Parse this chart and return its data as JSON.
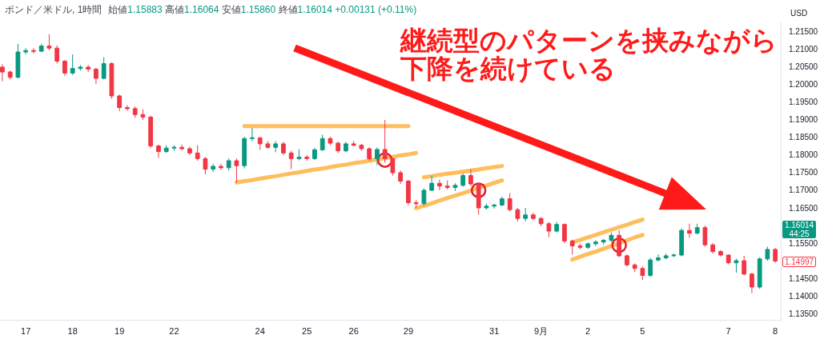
{
  "chart_data": {
    "type": "candlestick",
    "title": "ポンド／米ドル, 1時間",
    "subtitle": "始値1.15883 高値1.16064 安値1.15860 終値1.16014 +0.00131 (+0.11%)",
    "ylabel": "USD",
    "annotations": [
      "継続型のパターンを挟みながら",
      "下降を続けている",
      "1.16014",
      "44:25",
      "1.14997"
    ],
    "categories": [
      null,
      null,
      null,
      "17",
      null,
      null,
      null,
      null,
      null,
      "18",
      null,
      null,
      null,
      null,
      null,
      "19",
      null,
      null,
      null,
      null,
      null,
      null,
      "22",
      null,
      null,
      null,
      null,
      null,
      null,
      null,
      null,
      null,
      null,
      "24",
      null,
      null,
      null,
      null,
      null,
      "25",
      null,
      null,
      null,
      null,
      null,
      "26",
      null,
      null,
      null,
      null,
      null,
      null,
      "29",
      null,
      null,
      null,
      null,
      null,
      null,
      null,
      null,
      null,
      null,
      "31",
      null,
      null,
      null,
      null,
      null,
      "9月",
      null,
      null,
      null,
      null,
      null,
      "2",
      null,
      null,
      null,
      null,
      null,
      null,
      "5",
      null,
      null,
      null,
      null,
      null,
      null,
      null,
      null,
      null,
      null,
      "7",
      null,
      null,
      null,
      null,
      null,
      "8"
    ],
    "ohlc": [
      [
        1.205,
        1.2058,
        1.201,
        1.2036
      ],
      [
        1.2036,
        1.204,
        1.2015,
        1.2021
      ],
      [
        1.2021,
        1.2116,
        1.2018,
        1.2093
      ],
      [
        1.2093,
        1.2104,
        1.2086,
        1.2097
      ],
      [
        1.2097,
        1.2104,
        1.2088,
        1.2095
      ],
      [
        1.2095,
        1.2116,
        1.2093,
        1.211
      ],
      [
        1.211,
        1.2143,
        1.2098,
        1.2104
      ],
      [
        1.2104,
        1.2112,
        1.206,
        1.2067
      ],
      [
        1.2067,
        1.207,
        1.2025,
        1.2033
      ],
      [
        1.2033,
        1.2086,
        1.2028,
        1.2046
      ],
      [
        1.2046,
        1.2056,
        1.204,
        1.205
      ],
      [
        1.205,
        1.2056,
        1.2036,
        1.2044
      ],
      [
        1.2044,
        1.2048,
        1.2002,
        1.2018
      ],
      [
        1.2018,
        1.2078,
        1.2015,
        1.206
      ],
      [
        1.206,
        1.2064,
        1.196,
        1.1968
      ],
      [
        1.1968,
        1.1972,
        1.1925,
        1.1935
      ],
      [
        1.1935,
        1.1942,
        1.1926,
        1.1932
      ],
      [
        1.1932,
        1.1938,
        1.1906,
        1.1915
      ],
      [
        1.1915,
        1.193,
        1.19,
        1.1908
      ],
      [
        1.1908,
        1.1912,
        1.182,
        1.1826
      ],
      [
        1.1826,
        1.183,
        1.1792,
        1.181
      ],
      [
        1.181,
        1.1828,
        1.1806,
        1.182
      ],
      [
        1.182,
        1.1828,
        1.1812,
        1.1822
      ],
      [
        1.1822,
        1.183,
        1.1814,
        1.1818
      ],
      [
        1.1818,
        1.1824,
        1.18,
        1.1806
      ],
      [
        1.1806,
        1.1828,
        1.1784,
        1.179
      ],
      [
        1.179,
        1.1795,
        1.1745,
        1.176
      ],
      [
        1.176,
        1.1775,
        1.1752,
        1.1768
      ],
      [
        1.1768,
        1.1775,
        1.1758,
        1.1764
      ],
      [
        1.1764,
        1.179,
        1.1756,
        1.1784
      ],
      [
        1.1784,
        1.179,
        1.1722,
        1.177
      ],
      [
        1.177,
        1.1852,
        1.1762,
        1.1847
      ],
      [
        1.1847,
        1.1877,
        1.184,
        1.1849
      ],
      [
        1.1849,
        1.1852,
        1.1815,
        1.1832
      ],
      [
        1.1832,
        1.184,
        1.1818,
        1.1822
      ],
      [
        1.1822,
        1.184,
        1.1808,
        1.1832
      ],
      [
        1.1832,
        1.1838,
        1.18,
        1.1806
      ],
      [
        1.1806,
        1.1812,
        1.176,
        1.179
      ],
      [
        1.179,
        1.1817,
        1.1785,
        1.1794
      ],
      [
        1.1794,
        1.18,
        1.1784,
        1.179
      ],
      [
        1.179,
        1.182,
        1.1786,
        1.1815
      ],
      [
        1.1815,
        1.1858,
        1.1812,
        1.1847
      ],
      [
        1.1847,
        1.1852,
        1.1828,
        1.1834
      ],
      [
        1.1834,
        1.1838,
        1.1806,
        1.1812
      ],
      [
        1.1812,
        1.1838,
        1.1808,
        1.1832
      ],
      [
        1.1832,
        1.184,
        1.1824,
        1.1828
      ],
      [
        1.1828,
        1.1832,
        1.1812,
        1.1818
      ],
      [
        1.1818,
        1.1822,
        1.1784,
        1.179
      ],
      [
        1.179,
        1.1822,
        1.1771,
        1.1816
      ],
      [
        1.1816,
        1.19,
        1.1778,
        1.179
      ],
      [
        1.179,
        1.1792,
        1.1742,
        1.175
      ],
      [
        1.175,
        1.1756,
        1.1718,
        1.1726
      ],
      [
        1.1726,
        1.173,
        1.1658,
        1.1665
      ],
      [
        1.1665,
        1.1672,
        1.165,
        1.1662
      ],
      [
        1.1662,
        1.1705,
        1.1656,
        1.17
      ],
      [
        1.17,
        1.1742,
        1.1698,
        1.172
      ],
      [
        1.172,
        1.173,
        1.17,
        1.1712
      ],
      [
        1.1712,
        1.1728,
        1.1702,
        1.1708
      ],
      [
        1.1708,
        1.172,
        1.1698,
        1.1714
      ],
      [
        1.1714,
        1.1748,
        1.171,
        1.1742
      ],
      [
        1.1742,
        1.176,
        1.1712,
        1.1718
      ],
      [
        1.1718,
        1.1722,
        1.1631,
        1.165
      ],
      [
        1.165,
        1.1662,
        1.1645,
        1.1655
      ],
      [
        1.1655,
        1.1662,
        1.1648,
        1.1658
      ],
      [
        1.1658,
        1.1682,
        1.1655,
        1.1676
      ],
      [
        1.1676,
        1.1692,
        1.164,
        1.1645
      ],
      [
        1.1645,
        1.165,
        1.1612,
        1.162
      ],
      [
        1.162,
        1.165,
        1.1612,
        1.163
      ],
      [
        1.163,
        1.1636,
        1.1615,
        1.162
      ],
      [
        1.162,
        1.1624,
        1.1598,
        1.1605
      ],
      [
        1.1605,
        1.161,
        1.1567,
        1.1584
      ],
      [
        1.1584,
        1.161,
        1.158,
        1.1603
      ],
      [
        1.1603,
        1.1606,
        1.155,
        1.1556
      ],
      [
        1.1556,
        1.156,
        1.1517,
        1.1542
      ],
      [
        1.1542,
        1.1548,
        1.1532,
        1.1538
      ],
      [
        1.1538,
        1.1552,
        1.1533,
        1.1548
      ],
      [
        1.1548,
        1.1558,
        1.1542,
        1.1553
      ],
      [
        1.1553,
        1.1562,
        1.1546,
        1.1558
      ],
      [
        1.1558,
        1.158,
        1.1552,
        1.1572
      ],
      [
        1.1572,
        1.1586,
        1.151,
        1.1514
      ],
      [
        1.1514,
        1.1518,
        1.1484,
        1.1488
      ],
      [
        1.1488,
        1.1492,
        1.1468,
        1.1478
      ],
      [
        1.1478,
        1.1484,
        1.1445,
        1.1458
      ],
      [
        1.1458,
        1.1508,
        1.1454,
        1.1502
      ],
      [
        1.1502,
        1.1518,
        1.1498,
        1.1508
      ],
      [
        1.1508,
        1.152,
        1.1504,
        1.1514
      ],
      [
        1.1514,
        1.152,
        1.151,
        1.1516
      ],
      [
        1.1516,
        1.1592,
        1.1512,
        1.1586
      ],
      [
        1.1586,
        1.1605,
        1.1565,
        1.1578
      ],
      [
        1.1578,
        1.1605,
        1.1575,
        1.1594
      ],
      [
        1.1594,
        1.16,
        1.154,
        1.1545
      ],
      [
        1.1545,
        1.155,
        1.152,
        1.1526
      ],
      [
        1.1526,
        1.153,
        1.1512,
        1.1516
      ],
      [
        1.1516,
        1.1518,
        1.149,
        1.1494
      ],
      [
        1.1494,
        1.1506,
        1.1466,
        1.15
      ],
      [
        1.15,
        1.1514,
        1.1458,
        1.1462
      ],
      [
        1.1462,
        1.1466,
        1.1408,
        1.1425
      ],
      [
        1.1425,
        1.151,
        1.142,
        1.1505
      ],
      [
        1.1505,
        1.154,
        1.15,
        1.1532
      ],
      [
        1.1532,
        1.1536,
        1.1494,
        1.1499
      ]
    ],
    "colors": [
      "#f23645",
      "#f23645",
      "#089981",
      "#089981",
      "#f23645",
      "#089981",
      "#f23645",
      "#f23645",
      "#f23645",
      "#089981",
      "#089981",
      "#f23645",
      "#f23645",
      "#089981",
      "#f23645",
      "#f23645",
      "#f23645",
      "#f23645",
      "#f23645",
      "#f23645",
      "#f23645",
      "#089981",
      "#089981",
      "#f23645",
      "#f23645",
      "#f23645",
      "#f23645",
      "#089981",
      "#f23645",
      "#089981",
      "#f23645",
      "#089981",
      "#089981",
      "#f23645",
      "#f23645",
      "#089981",
      "#f23645",
      "#f23645",
      "#089981",
      "#f23645",
      "#089981",
      "#089981",
      "#f23645",
      "#f23645",
      "#089981",
      "#f23645",
      "#f23645",
      "#f23645",
      "#089981",
      "#f23645",
      "#f23645",
      "#f23645",
      "#f23645",
      "#f23645",
      "#089981",
      "#089981",
      "#f23645",
      "#f23645",
      "#089981",
      "#089981",
      "#f23645",
      "#f23645",
      "#089981",
      "#089981",
      "#089981",
      "#f23645",
      "#f23645",
      "#089981",
      "#f23645",
      "#f23645",
      "#f23645",
      "#089981",
      "#f23645",
      "#f23645",
      "#f23645",
      "#089981",
      "#089981",
      "#089981",
      "#089981",
      "#f23645",
      "#f23645",
      "#f23645",
      "#f23645",
      "#089981",
      "#089981",
      "#089981",
      "#089981",
      "#089981",
      "#f23645",
      "#089981",
      "#f23645",
      "#f23645",
      "#f23645",
      "#f23645",
      "#089981",
      "#f23645",
      "#f23645",
      "#089981",
      "#089981",
      "#f23645"
    ],
    "series": [
      {
        "type": "line",
        "color": "#ffb74d",
        "values": [
          null,
          null,
          null,
          null,
          null,
          null,
          null,
          null,
          null,
          null,
          null,
          null,
          null,
          null,
          null,
          null,
          null,
          null,
          null,
          null,
          null,
          null,
          null,
          null,
          null,
          null,
          null,
          null,
          null,
          null,
          null,
          1.1882,
          1.1882,
          1.1882,
          1.1882,
          1.1882,
          1.1882,
          1.1882,
          1.1882,
          1.1882,
          1.1882,
          1.1882,
          1.1882,
          1.1882,
          1.1882,
          1.1882,
          1.1882,
          1.1882,
          1.1882,
          1.1882,
          1.1882,
          1.1882,
          1.1882,
          null,
          null,
          null,
          null,
          null,
          null,
          null,
          null,
          null,
          null,
          null,
          null,
          null,
          null,
          null,
          null,
          null,
          null,
          null,
          null,
          null,
          null,
          null,
          null,
          null,
          null,
          null,
          null,
          null,
          null,
          null,
          null,
          null,
          null,
          null,
          null,
          null,
          null,
          null,
          null,
          null,
          null,
          null,
          null,
          null,
          null,
          null
        ]
      },
      {
        "type": "line",
        "color": "#ffb74d",
        "values": [
          null,
          null,
          null,
          null,
          null,
          null,
          null,
          null,
          null,
          null,
          null,
          null,
          null,
          null,
          null,
          null,
          null,
          null,
          null,
          null,
          null,
          null,
          null,
          null,
          null,
          null,
          null,
          null,
          null,
          null,
          1.1722,
          1.1726,
          1.1729,
          1.1733,
          1.1737,
          1.174,
          1.1744,
          1.1748,
          1.1751,
          1.1755,
          1.1759,
          1.1762,
          1.1766,
          1.177,
          1.1773,
          1.1777,
          1.178,
          1.1784,
          1.1788,
          1.1791,
          1.1795,
          1.1799,
          1.1802,
          1.1806,
          null,
          null,
          null,
          null,
          null,
          null,
          null,
          null,
          null,
          null,
          null,
          null,
          null,
          null,
          null,
          null,
          null,
          null,
          null,
          null,
          null,
          null,
          null,
          null,
          null,
          null,
          null,
          null,
          null,
          null,
          null,
          null,
          null,
          null,
          null,
          null,
          null,
          null,
          null,
          null,
          null,
          null,
          null,
          null,
          null,
          null
        ]
      },
      {
        "type": "line",
        "color": "#ffb74d",
        "values": [
          null,
          null,
          null,
          null,
          null,
          null,
          null,
          null,
          null,
          null,
          null,
          null,
          null,
          null,
          null,
          null,
          null,
          null,
          null,
          null,
          null,
          null,
          null,
          null,
          null,
          null,
          null,
          null,
          null,
          null,
          null,
          null,
          null,
          null,
          null,
          null,
          null,
          null,
          null,
          null,
          null,
          null,
          null,
          null,
          null,
          null,
          null,
          null,
          null,
          null,
          null,
          null,
          null,
          null,
          1.1737,
          1.174,
          1.1744,
          1.1747,
          1.175,
          1.1753,
          1.1756,
          1.1759,
          1.1763,
          1.1766,
          1.1769,
          null,
          null,
          null,
          null,
          null,
          null,
          null,
          null,
          null,
          null,
          null,
          null,
          null,
          null,
          null,
          null,
          null,
          null,
          null,
          null,
          null,
          null,
          null,
          null,
          null,
          null,
          null,
          null,
          null,
          null,
          null,
          null,
          null,
          null,
          null
        ]
      },
      {
        "type": "line",
        "color": "#ffb74d",
        "values": [
          null,
          null,
          null,
          null,
          null,
          null,
          null,
          null,
          null,
          null,
          null,
          null,
          null,
          null,
          null,
          null,
          null,
          null,
          null,
          null,
          null,
          null,
          null,
          null,
          null,
          null,
          null,
          null,
          null,
          null,
          null,
          null,
          null,
          null,
          null,
          null,
          null,
          null,
          null,
          null,
          null,
          null,
          null,
          null,
          null,
          null,
          null,
          null,
          null,
          null,
          null,
          null,
          null,
          1.1649,
          1.1656,
          1.1663,
          1.1671,
          1.1678,
          1.1685,
          1.1692,
          1.1699,
          1.1707,
          1.1714,
          1.1721,
          1.1728,
          null,
          null,
          null,
          null,
          null,
          null,
          null,
          null,
          null,
          null,
          null,
          null,
          null,
          null,
          null,
          null,
          null,
          null,
          null,
          null,
          null,
          null,
          null,
          null,
          null,
          null,
          null,
          null,
          null,
          null,
          null,
          null,
          null,
          null,
          null
        ]
      },
      {
        "type": "line",
        "color": "#ffb74d",
        "values": [
          null,
          null,
          null,
          null,
          null,
          null,
          null,
          null,
          null,
          null,
          null,
          null,
          null,
          null,
          null,
          null,
          null,
          null,
          null,
          null,
          null,
          null,
          null,
          null,
          null,
          null,
          null,
          null,
          null,
          null,
          null,
          null,
          null,
          null,
          null,
          null,
          null,
          null,
          null,
          null,
          null,
          null,
          null,
          null,
          null,
          null,
          null,
          null,
          null,
          null,
          null,
          null,
          null,
          null,
          null,
          null,
          null,
          null,
          null,
          null,
          null,
          null,
          null,
          null,
          null,
          null,
          null,
          null,
          null,
          null,
          null,
          null,
          null,
          1.1552,
          1.1559,
          1.1566,
          1.1573,
          1.1581,
          1.1588,
          1.1595,
          1.1602,
          1.161,
          1.1617,
          null,
          null,
          null,
          null,
          null,
          null,
          null,
          null,
          null,
          null,
          null,
          null,
          null,
          null,
          null,
          null,
          null
        ]
      },
      {
        "type": "line",
        "color": "#ffb74d",
        "values": [
          null,
          null,
          null,
          null,
          null,
          null,
          null,
          null,
          null,
          null,
          null,
          null,
          null,
          null,
          null,
          null,
          null,
          null,
          null,
          null,
          null,
          null,
          null,
          null,
          null,
          null,
          null,
          null,
          null,
          null,
          null,
          null,
          null,
          null,
          null,
          null,
          null,
          null,
          null,
          null,
          null,
          null,
          null,
          null,
          null,
          null,
          null,
          null,
          null,
          null,
          null,
          null,
          null,
          null,
          null,
          null,
          null,
          null,
          null,
          null,
          null,
          null,
          null,
          null,
          null,
          null,
          null,
          null,
          null,
          null,
          null,
          null,
          null,
          1.1503,
          1.1511,
          1.1519,
          1.1526,
          1.1534,
          1.1542,
          1.155,
          1.1558,
          1.1566,
          1.1573,
          null,
          null,
          null,
          null,
          null,
          null,
          null,
          null,
          null,
          null,
          null,
          null,
          null,
          null,
          null,
          null,
          null
        ]
      },
      {
        "type": "scatter",
        "color": "#e31b23",
        "marker": "circle",
        "values": [
          null,
          null,
          null,
          null,
          null,
          null,
          null,
          null,
          null,
          null,
          null,
          null,
          null,
          null,
          null,
          null,
          null,
          null,
          null,
          null,
          null,
          null,
          null,
          null,
          null,
          null,
          null,
          null,
          null,
          null,
          null,
          null,
          null,
          null,
          null,
          null,
          null,
          null,
          null,
          null,
          null,
          null,
          null,
          null,
          null,
          null,
          null,
          null,
          null,
          1.1786,
          null,
          null,
          null,
          null,
          null,
          null,
          null,
          null,
          null,
          null,
          null,
          1.17,
          null,
          null,
          null,
          null,
          null,
          null,
          null,
          null,
          null,
          null,
          null,
          null,
          null,
          null,
          null,
          null,
          null,
          1.1544,
          null,
          null,
          null,
          null,
          null,
          null,
          null,
          null,
          null,
          null,
          null,
          null,
          null,
          null,
          null,
          null,
          null,
          null,
          null,
          null
        ]
      }
    ],
    "ylim": [
      1.1332,
      1.2177
    ],
    "yticks": [
      {
        "value": 1.135,
        "label": "1.13500"
      },
      {
        "value": 1.14,
        "label": "1.14000"
      },
      {
        "value": 1.145,
        "label": "1.14500"
      },
      {
        "value": 1.155,
        "label": "1.15500"
      },
      {
        "value": 1.165,
        "label": "1.16500"
      },
      {
        "value": 1.17,
        "label": "1.17000"
      },
      {
        "value": 1.175,
        "label": "1.17500"
      },
      {
        "value": 1.18,
        "label": "1.18000"
      },
      {
        "value": 1.185,
        "label": "1.18500"
      },
      {
        "value": 1.19,
        "label": "1.19000"
      },
      {
        "value": 1.195,
        "label": "1.19500"
      },
      {
        "value": 1.2,
        "label": "1.20000"
      },
      {
        "value": 1.205,
        "label": "1.20500"
      },
      {
        "value": 1.21,
        "label": "1.21000"
      },
      {
        "value": 1.215,
        "label": "1.21500"
      }
    ]
  }
}
